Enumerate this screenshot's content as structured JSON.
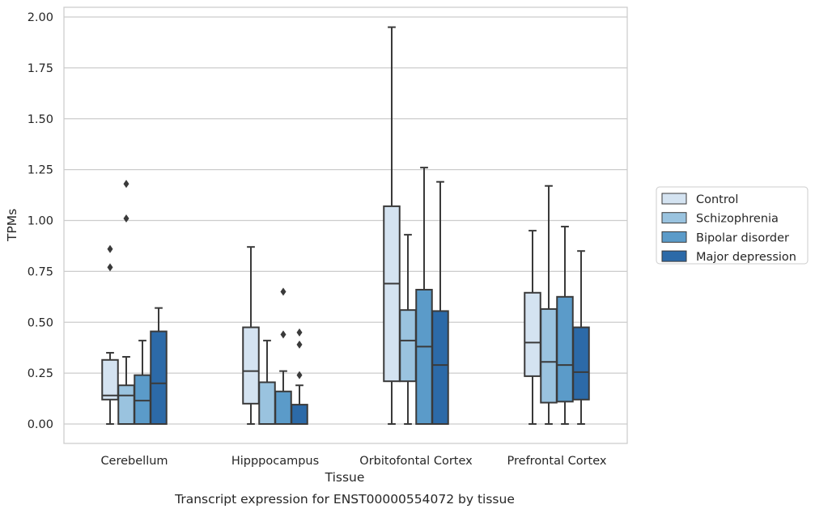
{
  "chart_data": {
    "type": "box",
    "title": "",
    "caption": "Transcript expression for ENST00000554072 by tissue",
    "xlabel": "Tissue",
    "ylabel": "TPMs",
    "ylim": [
      -0.1,
      2.05
    ],
    "yticks": [
      "0.00",
      "0.25",
      "0.50",
      "0.75",
      "1.00",
      "1.25",
      "1.50",
      "1.75",
      "2.00"
    ],
    "grid": "horizontal",
    "legend_position": "right",
    "categories": [
      "Cerebellum",
      "Hipppocampus",
      "Orbitofontal Cortex",
      "Prefrontal Cortex"
    ],
    "series": [
      {
        "name": "Control",
        "color": "#d4e3f1",
        "boxes": [
          {
            "whislo": 0.0,
            "q1": 0.12,
            "med": 0.14,
            "q3": 0.315,
            "whishi": 0.35,
            "fliers": [
              0.77,
              0.86
            ]
          },
          {
            "whislo": 0.0,
            "q1": 0.1,
            "med": 0.26,
            "q3": 0.475,
            "whishi": 0.87,
            "fliers": []
          },
          {
            "whislo": 0.0,
            "q1": 0.21,
            "med": 0.69,
            "q3": 1.07,
            "whishi": 1.95,
            "fliers": []
          },
          {
            "whislo": 0.0,
            "q1": 0.235,
            "med": 0.4,
            "q3": 0.645,
            "whishi": 0.95,
            "fliers": []
          }
        ]
      },
      {
        "name": "Schizophrenia",
        "color": "#9ac3df",
        "boxes": [
          {
            "whislo": 0.0,
            "q1": 0.0,
            "med": 0.14,
            "q3": 0.19,
            "whishi": 0.33,
            "fliers": [
              1.01,
              1.18
            ]
          },
          {
            "whislo": 0.0,
            "q1": 0.0,
            "med": 0.0,
            "q3": 0.205,
            "whishi": 0.41,
            "fliers": []
          },
          {
            "whislo": 0.0,
            "q1": 0.21,
            "med": 0.41,
            "q3": 0.56,
            "whishi": 0.93,
            "fliers": []
          },
          {
            "whislo": 0.0,
            "q1": 0.105,
            "med": 0.305,
            "q3": 0.565,
            "whishi": 1.17,
            "fliers": []
          }
        ]
      },
      {
        "name": "Bipolar disorder",
        "color": "#5b9bc9",
        "boxes": [
          {
            "whislo": 0.0,
            "q1": 0.0,
            "med": 0.115,
            "q3": 0.24,
            "whishi": 0.41,
            "fliers": []
          },
          {
            "whislo": 0.0,
            "q1": 0.0,
            "med": 0.0,
            "q3": 0.16,
            "whishi": 0.26,
            "fliers": [
              0.44,
              0.65
            ]
          },
          {
            "whislo": 0.0,
            "q1": 0.0,
            "med": 0.38,
            "q3": 0.66,
            "whishi": 1.26,
            "fliers": []
          },
          {
            "whislo": 0.0,
            "q1": 0.11,
            "med": 0.29,
            "q3": 0.625,
            "whishi": 0.97,
            "fliers": []
          }
        ]
      },
      {
        "name": "Major depression",
        "color": "#2c6aa8",
        "boxes": [
          {
            "whislo": 0.0,
            "q1": 0.0,
            "med": 0.2,
            "q3": 0.455,
            "whishi": 0.57,
            "fliers": []
          },
          {
            "whislo": 0.0,
            "q1": 0.0,
            "med": 0.0,
            "q3": 0.095,
            "whishi": 0.19,
            "fliers": [
              0.24,
              0.39,
              0.45
            ]
          },
          {
            "whislo": 0.0,
            "q1": 0.0,
            "med": 0.29,
            "q3": 0.555,
            "whishi": 1.19,
            "fliers": []
          },
          {
            "whislo": 0.0,
            "q1": 0.12,
            "med": 0.255,
            "q3": 0.475,
            "whishi": 0.85,
            "fliers": []
          }
        ]
      }
    ]
  }
}
